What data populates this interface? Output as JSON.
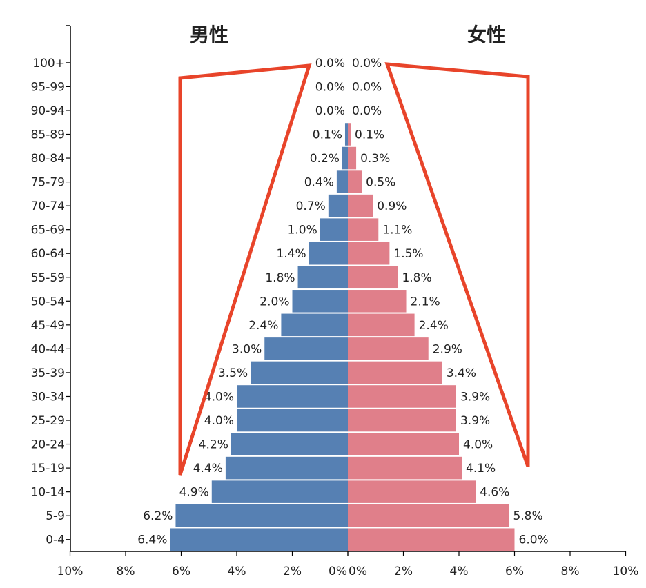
{
  "chart_data": {
    "type": "bar",
    "orientation": "horizontal",
    "layout": "population-pyramid",
    "left_title": "男性",
    "right_title": "女性",
    "categories": [
      "100+",
      "95-99",
      "90-94",
      "85-89",
      "80-84",
      "75-79",
      "70-74",
      "65-69",
      "60-64",
      "55-59",
      "50-54",
      "45-49",
      "40-44",
      "35-39",
      "30-34",
      "25-29",
      "20-24",
      "15-19",
      "10-14",
      "5-9",
      "0-4"
    ],
    "series": [
      {
        "name": "男性",
        "color": "#5680b3",
        "values": [
          0.0,
          0.0,
          0.0,
          0.1,
          0.2,
          0.4,
          0.7,
          1.0,
          1.4,
          1.8,
          2.0,
          2.4,
          3.0,
          3.5,
          4.0,
          4.0,
          4.2,
          4.4,
          4.9,
          6.2,
          6.4
        ],
        "labels": [
          "0.0%",
          "0.0%",
          "0.0%",
          "0.1%",
          "0.2%",
          "0.4%",
          "0.7%",
          "1.0%",
          "1.4%",
          "1.8%",
          "2.0%",
          "2.4%",
          "3.0%",
          "3.5%",
          "4.0%",
          "4.0%",
          "4.2%",
          "4.4%",
          "4.9%",
          "6.2%",
          "6.4%"
        ]
      },
      {
        "name": "女性",
        "color": "#e07f8a",
        "values": [
          0.0,
          0.0,
          0.0,
          0.1,
          0.3,
          0.5,
          0.9,
          1.1,
          1.5,
          1.8,
          2.1,
          2.4,
          2.9,
          3.4,
          3.9,
          3.9,
          4.0,
          4.1,
          4.6,
          5.8,
          6.0
        ],
        "labels": [
          "0.0%",
          "0.0%",
          "0.0%",
          "0.1%",
          "0.3%",
          "0.5%",
          "0.9%",
          "1.1%",
          "1.5%",
          "1.8%",
          "2.1%",
          "2.4%",
          "2.9%",
          "3.4%",
          "3.9%",
          "3.9%",
          "4.0%",
          "4.1%",
          "4.6%",
          "5.8%",
          "6.0%"
        ]
      }
    ],
    "xlim": [
      0,
      10
    ],
    "x_ticks_left": [
      "10%",
      "8%",
      "6%",
      "4%",
      "2%",
      "0%"
    ],
    "x_ticks_right": [
      "0%",
      "2%",
      "4%",
      "6%",
      "8%",
      "10%"
    ],
    "grid": false,
    "annotation": {
      "shape": "outline-trapezoids",
      "color": "#e8442a"
    }
  }
}
